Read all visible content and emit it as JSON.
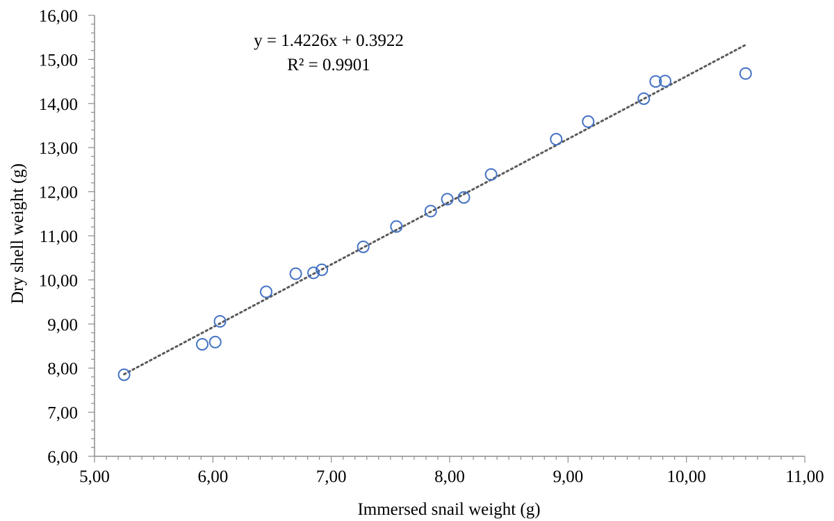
{
  "chart_data": {
    "type": "scatter",
    "title": "",
    "xlabel": "Immersed snail weight (g)",
    "ylabel": "Dry shell weight (g)",
    "xlim": [
      5,
      11
    ],
    "ylim": [
      6,
      16
    ],
    "x_ticks": [
      "5,00",
      "6,00",
      "7,00",
      "8,00",
      "9,00",
      "10,00",
      "11,00"
    ],
    "y_ticks": [
      "6,00",
      "7,00",
      "8,00",
      "9,00",
      "10,00",
      "11,00",
      "12,00",
      "13,00",
      "14,00",
      "15,00",
      "16,00"
    ],
    "grid": false,
    "legend": "none",
    "marker_color": "#4472C4",
    "trendline_color": "#595959",
    "trendline": {
      "type": "linear",
      "slope": 1.4226,
      "intercept": 0.3922,
      "x_range": [
        5.25,
        10.5
      ],
      "equation_label": "y = 1.4226x + 0.3922",
      "r2_label": "R² = 0.9901"
    },
    "points": [
      {
        "x": 5.25,
        "y": 7.85
      },
      {
        "x": 5.91,
        "y": 8.54
      },
      {
        "x": 6.02,
        "y": 8.59
      },
      {
        "x": 6.06,
        "y": 9.06
      },
      {
        "x": 6.45,
        "y": 9.73
      },
      {
        "x": 6.7,
        "y": 10.14
      },
      {
        "x": 6.85,
        "y": 10.16
      },
      {
        "x": 6.92,
        "y": 10.23
      },
      {
        "x": 7.27,
        "y": 10.75
      },
      {
        "x": 7.55,
        "y": 11.21
      },
      {
        "x": 7.84,
        "y": 11.56
      },
      {
        "x": 7.98,
        "y": 11.83
      },
      {
        "x": 8.12,
        "y": 11.87
      },
      {
        "x": 8.35,
        "y": 12.39
      },
      {
        "x": 8.9,
        "y": 13.19
      },
      {
        "x": 9.17,
        "y": 13.59
      },
      {
        "x": 9.64,
        "y": 14.11
      },
      {
        "x": 9.74,
        "y": 14.5
      },
      {
        "x": 9.82,
        "y": 14.51
      },
      {
        "x": 10.5,
        "y": 14.68
      }
    ]
  }
}
